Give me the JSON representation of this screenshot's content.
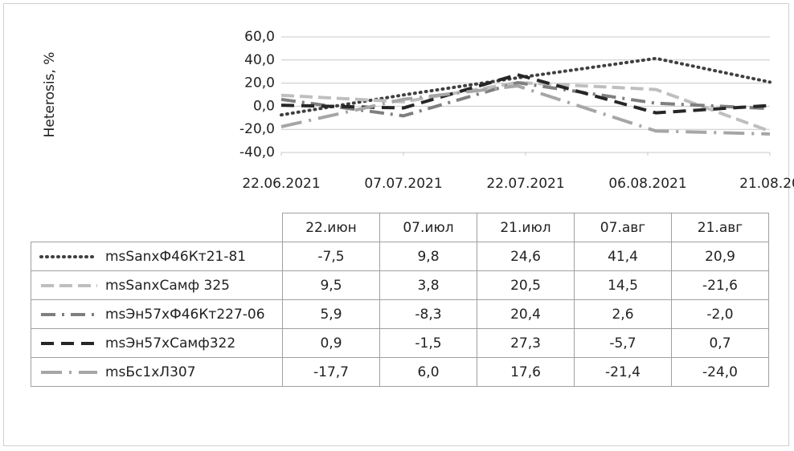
{
  "chart_data": {
    "type": "line",
    "y_label": "Heterosis, %",
    "x": [
      "2021-06-22",
      "2021-07-07",
      "2021-07-21",
      "2021-08-07",
      "2021-08-21"
    ],
    "xlim": [
      "2021-06-22",
      "2021-08-21"
    ],
    "xticks": [
      {
        "value": "2021-06-22",
        "label": "22.06.2021"
      },
      {
        "value": "2021-07-07",
        "label": "07.07.2021"
      },
      {
        "value": "2021-07-22",
        "label": "22.07.2021"
      },
      {
        "value": "2021-08-06",
        "label": "06.08.2021"
      },
      {
        "value": "2021-08-21",
        "label": "21.08.20"
      }
    ],
    "ylim": [
      -40,
      60
    ],
    "yticks": [
      {
        "value": 60,
        "label": "60,0"
      },
      {
        "value": 40,
        "label": "40,0"
      },
      {
        "value": 20,
        "label": "20,0"
      },
      {
        "value": 0,
        "label": "0,0"
      },
      {
        "value": -20,
        "label": "-20,0"
      },
      {
        "value": -40,
        "label": "-40,0"
      }
    ],
    "grid": true,
    "categories": [
      "22.июн",
      "07.июл",
      "21.июл",
      "07.авг",
      "21.авг"
    ],
    "series": [
      {
        "name": "msSanxФ46Кт21-81",
        "color": "#404040",
        "dash": "dotted",
        "values": [
          -7.5,
          9.8,
          24.6,
          41.4,
          20.9
        ],
        "value_labels": [
          "-7,5",
          "9,8",
          "24,6",
          "41,4",
          "20,9"
        ]
      },
      {
        "name": "msSanxСамф 325",
        "color": "#bfbfbf",
        "dash": "dashed",
        "values": [
          9.5,
          3.8,
          20.5,
          14.5,
          -21.6
        ],
        "value_labels": [
          "9,5",
          "3,8",
          "20,5",
          "14,5",
          "-21,6"
        ]
      },
      {
        "name": "msЭн57хФ46Кт227-06",
        "color": "#7f7f7f",
        "dash": "dash-dot",
        "values": [
          5.9,
          -8.3,
          20.4,
          2.6,
          -2.0
        ],
        "value_labels": [
          "5,9",
          "-8,3",
          "20,4",
          "2,6",
          "-2,0"
        ]
      },
      {
        "name": "msЭн57хСамф322",
        "color": "#262626",
        "dash": "long-dash",
        "values": [
          0.9,
          -1.5,
          27.3,
          -5.7,
          0.7
        ],
        "value_labels": [
          "0,9",
          "-1,5",
          "27,3",
          "-5,7",
          "0,7"
        ]
      },
      {
        "name": "msБс1хЛ307",
        "color": "#a6a6a6",
        "dash": "long-dash-dot",
        "values": [
          -17.7,
          6.0,
          17.6,
          -21.4,
          -24.0
        ],
        "value_labels": [
          "-17,7",
          "6,0",
          "17,6",
          "-21,4",
          "-24,0"
        ]
      }
    ]
  }
}
